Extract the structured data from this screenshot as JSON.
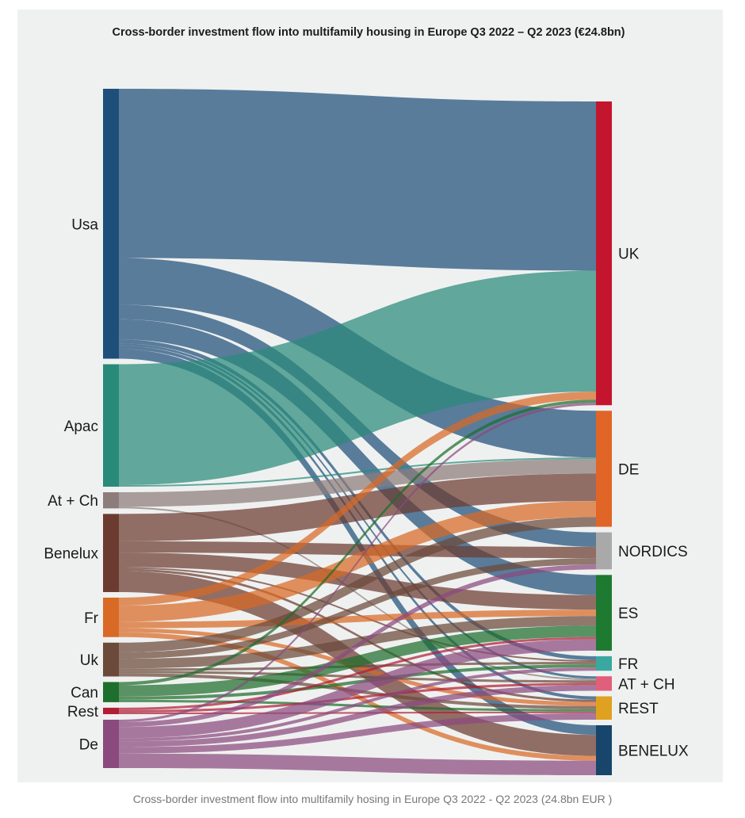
{
  "title": "Cross-border investment flow into multifamily housing in Europe Q3 2022 – Q2 2023 (€24.8bn)",
  "caption": "Cross-border investment flow into multifamily hosing in Europe Q3 2022 - Q2 2023 (24.8bn EUR )",
  "sources": [
    {
      "id": "usa",
      "label": "Usa",
      "color": "#1e4f7a"
    },
    {
      "id": "apac",
      "label": "Apac",
      "color": "#2a8a7a"
    },
    {
      "id": "atch",
      "label": "At + Ch",
      "color": "#8c7d7a"
    },
    {
      "id": "benelux",
      "label": "Benelux",
      "color": "#6b3b30"
    },
    {
      "id": "fr",
      "label": "Fr",
      "color": "#d86a26"
    },
    {
      "id": "uk",
      "label": "Uk",
      "color": "#6b4a3a"
    },
    {
      "id": "can",
      "label": "Can",
      "color": "#1e6e2c"
    },
    {
      "id": "rest",
      "label": "Rest",
      "color": "#b01e36"
    },
    {
      "id": "de",
      "label": "De",
      "color": "#8a4a7e"
    }
  ],
  "targets": [
    {
      "id": "t_uk",
      "label": "UK",
      "color": "#c4152e"
    },
    {
      "id": "t_de",
      "label": "DE",
      "color": "#e06526"
    },
    {
      "id": "t_nordics",
      "label": "NORDICS",
      "color": "#a9a9a9"
    },
    {
      "id": "t_es",
      "label": "ES",
      "color": "#1e7a30"
    },
    {
      "id": "t_fr",
      "label": "FR",
      "color": "#3aa8a0"
    },
    {
      "id": "t_atch",
      "label": "AT + CH",
      "color": "#e05f7a"
    },
    {
      "id": "t_rest",
      "label": "REST",
      "color": "#e0a020"
    },
    {
      "id": "t_benelux",
      "label": "BENELUX",
      "color": "#17456b"
    }
  ],
  "flows": [
    {
      "s": "usa",
      "t": "t_uk",
      "v": 210
    },
    {
      "s": "usa",
      "t": "t_de",
      "v": 58
    },
    {
      "s": "usa",
      "t": "t_nordics",
      "v": 18
    },
    {
      "s": "usa",
      "t": "t_es",
      "v": 25
    },
    {
      "s": "usa",
      "t": "t_fr",
      "v": 5
    },
    {
      "s": "usa",
      "t": "t_atch",
      "v": 3
    },
    {
      "s": "usa",
      "t": "t_rest",
      "v": 4
    },
    {
      "s": "usa",
      "t": "t_benelux",
      "v": 12
    },
    {
      "s": "apac",
      "t": "t_uk",
      "v": 150
    },
    {
      "s": "apac",
      "t": "t_de",
      "v": 2
    },
    {
      "s": "atch",
      "t": "t_de",
      "v": 18
    },
    {
      "s": "atch",
      "t": "t_atch",
      "v": 2
    },
    {
      "s": "benelux",
      "t": "t_de",
      "v": 34
    },
    {
      "s": "benelux",
      "t": "t_nordics",
      "v": 14
    },
    {
      "s": "benelux",
      "t": "t_es",
      "v": 18
    },
    {
      "s": "benelux",
      "t": "t_fr",
      "v": 2
    },
    {
      "s": "benelux",
      "t": "t_rest",
      "v": 3
    },
    {
      "s": "benelux",
      "t": "t_benelux",
      "v": 26
    },
    {
      "s": "fr",
      "t": "t_uk",
      "v": 10
    },
    {
      "s": "fr",
      "t": "t_de",
      "v": 20
    },
    {
      "s": "fr",
      "t": "t_es",
      "v": 8
    },
    {
      "s": "fr",
      "t": "t_rest",
      "v": 5
    },
    {
      "s": "fr",
      "t": "t_benelux",
      "v": 6
    },
    {
      "s": "uk",
      "t": "t_de",
      "v": 12
    },
    {
      "s": "uk",
      "t": "t_nordics",
      "v": 8
    },
    {
      "s": "uk",
      "t": "t_es",
      "v": 12
    },
    {
      "s": "uk",
      "t": "t_fr",
      "v": 3
    },
    {
      "s": "uk",
      "t": "t_atch",
      "v": 3
    },
    {
      "s": "uk",
      "t": "t_rest",
      "v": 4
    },
    {
      "s": "can",
      "t": "t_uk",
      "v": 4
    },
    {
      "s": "can",
      "t": "t_es",
      "v": 14
    },
    {
      "s": "can",
      "t": "t_fr",
      "v": 4
    },
    {
      "s": "can",
      "t": "t_rest",
      "v": 3
    },
    {
      "s": "rest",
      "t": "t_es",
      "v": 3
    },
    {
      "s": "rest",
      "t": "t_atch",
      "v": 3
    },
    {
      "s": "rest",
      "t": "t_rest",
      "v": 2
    },
    {
      "s": "de",
      "t": "t_uk",
      "v": 3
    },
    {
      "s": "de",
      "t": "t_nordics",
      "v": 6
    },
    {
      "s": "de",
      "t": "t_es",
      "v": 14
    },
    {
      "s": "de",
      "t": "t_fr",
      "v": 4
    },
    {
      "s": "de",
      "t": "t_atch",
      "v": 7
    },
    {
      "s": "de",
      "t": "t_rest",
      "v": 8
    },
    {
      "s": "de",
      "t": "t_benelux",
      "v": 18
    }
  ]
}
